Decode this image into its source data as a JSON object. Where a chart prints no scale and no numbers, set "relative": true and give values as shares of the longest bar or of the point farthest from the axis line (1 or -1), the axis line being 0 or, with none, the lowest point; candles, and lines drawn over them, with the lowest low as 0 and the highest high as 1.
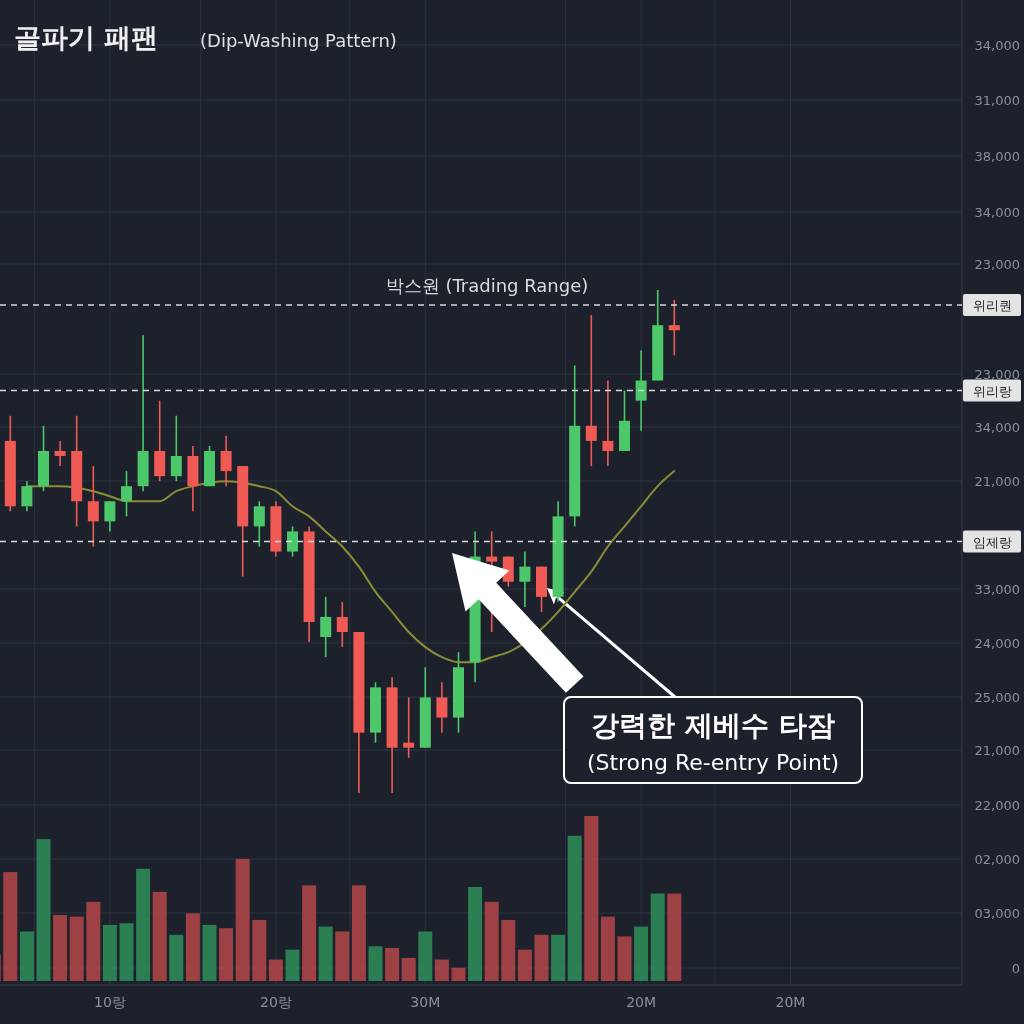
{
  "chart_data": [
    {
      "type": "candlestick",
      "title": "골파기 패팬",
      "subtitle": "(Dip-Washing Pattern)",
      "relative": true,
      "tick_labels": false,
      "grid": true,
      "categories": [
        null,
        null,
        null,
        null,
        null,
        null,
        null,
        null,
        null,
        null,
        null,
        null,
        null,
        null,
        null,
        null,
        null,
        null,
        null,
        null,
        null,
        null,
        null,
        null,
        null,
        null,
        null,
        null,
        null,
        null,
        null,
        null,
        null,
        null,
        null,
        null,
        null,
        null,
        null,
        null,
        null,
        null,
        null,
        null,
        null,
        null,
        null,
        null,
        null,
        null,
        null,
        null,
        null,
        null,
        null,
        null,
        null,
        null,
        null
      ],
      "ohlc": [
        null,
        [
          0.7,
          0.75,
          0.56,
          0.57
        ],
        [
          0.57,
          0.62,
          0.56,
          0.61
        ],
        [
          0.61,
          0.73,
          0.6,
          0.68
        ],
        [
          0.68,
          0.7,
          0.65,
          0.67
        ],
        [
          0.68,
          0.75,
          0.53,
          0.58
        ],
        [
          0.58,
          0.65,
          0.49,
          0.54
        ],
        [
          0.54,
          0.58,
          0.52,
          0.58
        ],
        [
          0.58,
          0.64,
          0.55,
          0.61
        ],
        [
          0.61,
          0.91,
          0.6,
          0.68
        ],
        [
          0.68,
          0.78,
          0.62,
          0.63
        ],
        [
          0.63,
          0.75,
          0.62,
          0.67
        ],
        [
          0.67,
          0.69,
          0.56,
          0.61
        ],
        [
          0.61,
          0.69,
          0.61,
          0.68
        ],
        [
          0.68,
          0.71,
          0.61,
          0.64
        ],
        [
          0.65,
          0.65,
          0.43,
          0.53
        ],
        [
          0.53,
          0.58,
          0.49,
          0.57
        ],
        [
          0.57,
          0.58,
          0.47,
          0.48
        ],
        [
          0.48,
          0.53,
          0.47,
          0.52
        ],
        [
          0.52,
          0.53,
          0.3,
          0.34
        ],
        [
          0.31,
          0.39,
          0.27,
          0.35
        ],
        [
          0.35,
          0.38,
          0.29,
          0.32
        ],
        [
          0.32,
          0.32,
          0.0,
          0.12
        ],
        [
          0.12,
          0.22,
          0.1,
          0.21
        ],
        [
          0.21,
          0.23,
          0.0,
          0.09
        ],
        [
          0.1,
          0.19,
          0.07,
          0.09
        ],
        [
          0.09,
          0.25,
          0.09,
          0.19
        ],
        [
          0.19,
          0.22,
          0.12,
          0.15
        ],
        [
          0.15,
          0.28,
          0.12,
          0.25
        ],
        [
          0.26,
          0.52,
          0.22,
          0.47
        ],
        [
          0.47,
          0.52,
          0.32,
          0.46
        ],
        [
          0.47,
          0.47,
          0.41,
          0.42
        ],
        [
          0.42,
          0.48,
          0.37,
          0.45
        ],
        [
          0.45,
          0.45,
          0.36,
          0.39
        ],
        [
          0.39,
          0.58,
          0.38,
          0.55
        ],
        [
          0.55,
          0.85,
          0.53,
          0.73
        ],
        [
          0.73,
          0.95,
          0.65,
          0.7
        ],
        [
          0.7,
          0.82,
          0.65,
          0.68
        ],
        [
          0.68,
          0.8,
          0.68,
          0.74
        ],
        [
          0.78,
          0.88,
          0.72,
          0.82
        ],
        [
          0.82,
          1.0,
          0.82,
          0.93
        ],
        [
          0.93,
          0.98,
          0.87,
          0.92
        ],
        null,
        null,
        null,
        null,
        null,
        null,
        null,
        null,
        null,
        null,
        null,
        null,
        null,
        null,
        null,
        null,
        null
      ],
      "colors": [
        null,
        "#f05a55",
        "#4cc86a",
        "#4cc86a",
        "#f05a55",
        "#f05a55",
        "#f05a55",
        "#4cc86a",
        "#4cc86a",
        "#4cc86a",
        "#f05a55",
        "#4cc86a",
        "#f05a55",
        "#4cc86a",
        "#f05a55",
        "#f05a55",
        "#4cc86a",
        "#f05a55",
        "#4cc86a",
        "#f05a55",
        "#4cc86a",
        "#f05a55",
        "#f05a55",
        "#4cc86a",
        "#f05a55",
        "#f05a55",
        "#4cc86a",
        "#f05a55",
        "#4cc86a",
        "#4cc86a",
        "#f05a55",
        "#f05a55",
        "#4cc86a",
        "#f05a55",
        "#4cc86a",
        "#4cc86a",
        "#f05a55",
        "#f05a55",
        "#4cc86a",
        "#4cc86a",
        "#4cc86a",
        "#f05a55",
        null,
        null,
        null,
        null,
        null,
        null,
        null,
        null,
        null,
        null,
        null,
        null,
        null,
        null,
        null,
        null,
        null
      ],
      "series": [
        {
          "type": "line",
          "color": "#8c8c34",
          "values": [
            null,
            null,
            0.61,
            0.61,
            0.61,
            null,
            0.6,
            0.59,
            0.58,
            0.58,
            0.58,
            0.6,
            0.61,
            null,
            0.62,
            null,
            0.61,
            0.6,
            0.57,
            0.55,
            0.52,
            0.49,
            0.45,
            0.4,
            0.36,
            0.32,
            0.29,
            0.27,
            0.26,
            0.26,
            0.27,
            0.28,
            null,
            null,
            0.36,
            0.4,
            0.44,
            0.49,
            0.53,
            0.57,
            0.61,
            0.64,
            null,
            null,
            null,
            null,
            null,
            null,
            null,
            null,
            null,
            null,
            null,
            null,
            null,
            null,
            null,
            null,
            null
          ]
        }
      ],
      "ref_lines": [
        {
          "axis": "y",
          "value": 0.97,
          "label": "위리퀀",
          "color": "#d8d8d8",
          "line_style": "dashed"
        },
        {
          "axis": "y",
          "value": 0.8,
          "label": "위리랑",
          "color": "#d8d8d8",
          "line_style": "dashed"
        },
        {
          "axis": "y",
          "value": 0.5,
          "label": "임제랑",
          "color": "#d8d8d8",
          "line_style": "dashed"
        }
      ],
      "annotations": [
        "박스원 (Trading Range)",
        "강력한 제베수 타잠\n(Strong Re-entry Point)",
        "34,000",
        "31,000",
        "38,000",
        "34,000",
        "23,000",
        "23,000",
        "34,000",
        "21,000",
        "33,000",
        "24,000",
        "25,000",
        "21,000"
      ]
    },
    {
      "type": "bar",
      "relative": true,
      "tick_labels": "x",
      "grid": true,
      "categories": [
        null,
        null,
        null,
        null,
        null,
        null,
        null,
        "10랑",
        null,
        null,
        null,
        null,
        null,
        null,
        null,
        null,
        null,
        "20랑",
        null,
        null,
        null,
        null,
        null,
        null,
        null,
        null,
        "30M",
        null,
        null,
        null,
        null,
        null,
        null,
        null,
        null,
        null,
        null,
        null,
        null,
        "20M",
        null,
        null,
        null,
        null,
        null,
        null,
        null,
        null,
        "20M",
        null,
        null,
        null,
        null,
        null,
        null,
        null,
        null,
        null,
        null
      ],
      "values": [
        0.16,
        0.66,
        0.3,
        0.86,
        0.4,
        0.39,
        0.48,
        0.34,
        0.35,
        0.68,
        0.54,
        0.28,
        0.41,
        0.34,
        0.32,
        0.74,
        0.37,
        0.13,
        0.19,
        0.58,
        0.33,
        0.3,
        0.58,
        0.21,
        0.2,
        0.14,
        0.3,
        0.13,
        0.08,
        0.57,
        0.48,
        0.37,
        0.19,
        0.28,
        0.28,
        0.88,
        1.0,
        0.39,
        0.27,
        0.33,
        0.53,
        0.53,
        null,
        null,
        null,
        null,
        null,
        null,
        null,
        null,
        null,
        null,
        null,
        null,
        null,
        null,
        null,
        null,
        null
      ],
      "colors": [
        "#b5474a",
        "#b5474a",
        "#2f8f5b",
        "#2f8f5b",
        "#b5474a",
        "#b5474a",
        "#b5474a",
        "#2f8f5b",
        "#2f8f5b",
        "#2f8f5b",
        "#b5474a",
        "#2f8f5b",
        "#b5474a",
        "#2f8f5b",
        "#b5474a",
        "#b5474a",
        "#b5474a",
        "#b5474a",
        "#2f8f5b",
        "#b5474a",
        "#2f8f5b",
        "#b5474a",
        "#b5474a",
        "#2f8f5b",
        "#b5474a",
        "#b5474a",
        "#2f8f5b",
        "#b5474a",
        "#b5474a",
        "#2f8f5b",
        "#b5474a",
        "#b5474a",
        "#b5474a",
        "#b5474a",
        "#2f8f5b",
        "#2f8f5b",
        "#b5474a",
        "#b5474a",
        "#b5474a",
        "#2f8f5b",
        "#2f8f5b",
        "#b5474a",
        null,
        null,
        null,
        null,
        null,
        null,
        null,
        null,
        null,
        null,
        null,
        null,
        null,
        null,
        null,
        null,
        null
      ],
      "annotations": [
        "22,000",
        "02,000",
        "03,000",
        "0"
      ]
    }
  ]
}
